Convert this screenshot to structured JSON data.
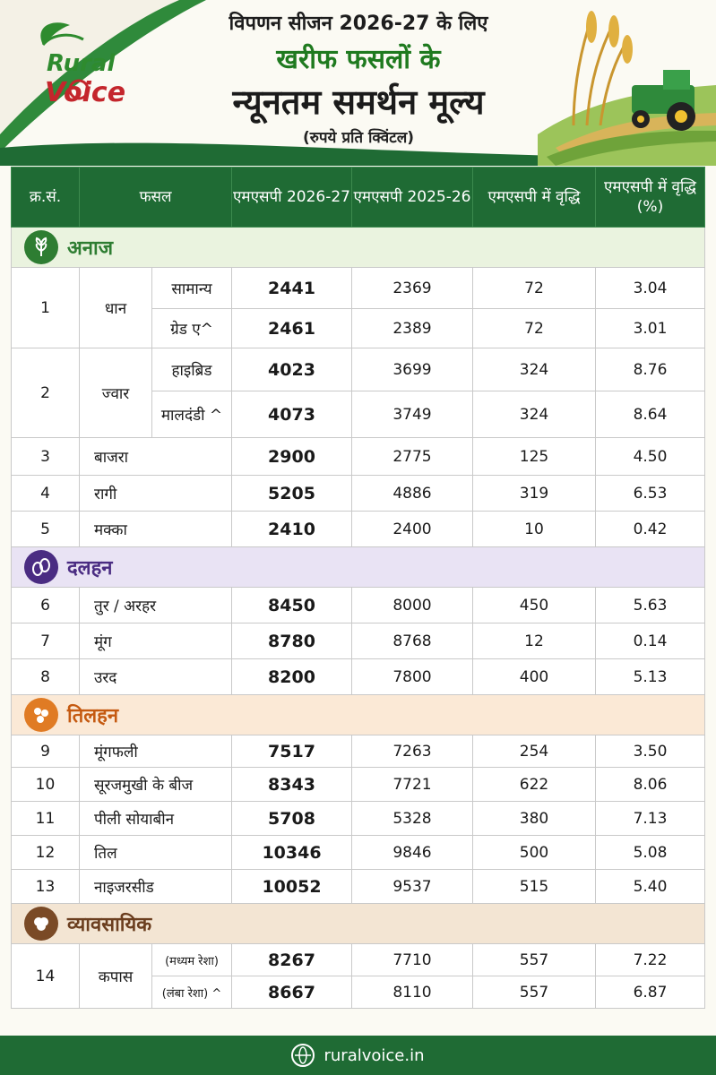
{
  "header": {
    "logo_word1": "Rural",
    "logo_word2": "Voice",
    "title_line1": "विपणन सीजन 2026-27 के लिए",
    "title_line2": "खरीफ फसलों के",
    "title_line3": "न्यूनतम समर्थन मूल्य",
    "title_line4": "(रुपये प्रति क्विंटल)"
  },
  "columns": [
    "क्र.सं.",
    "फसल",
    "एमएसपी 2026-27",
    "एमएसपी 2025-26",
    "एमएसपी में वृद्धि",
    "एमएसपी में वृद्धि (%)"
  ],
  "sections": [
    {
      "label": "अनाज",
      "color": "#2e7d32",
      "bg": "#eaf3df",
      "icon": "grain-icon"
    },
    {
      "label": "दलहन",
      "color": "#4a2c82",
      "bg": "#e9e3f4",
      "icon": "pulses-icon"
    },
    {
      "label": "तिलहन",
      "color": "#c55a11",
      "bg": "#fbe9d6",
      "icon": "oilseed-icon"
    },
    {
      "label": "व्यावसायिक",
      "color": "#6b3e1f",
      "bg": "#f3e5d3",
      "icon": "cotton-icon"
    }
  ],
  "rows": {
    "r1": {
      "sn": "1",
      "crop": "धान",
      "sub1": "सामान्य",
      "v1": [
        "2441",
        "2369",
        "72",
        "3.04"
      ],
      "sub2": "ग्रेड ए^",
      "v2": [
        "2461",
        "2389",
        "72",
        "3.01"
      ]
    },
    "r2": {
      "sn": "2",
      "crop": "ज्वार",
      "sub1": "हाइब्रिड",
      "v1": [
        "4023",
        "3699",
        "324",
        "8.76"
      ],
      "sub2": "मालदंडी ^",
      "v2": [
        "4073",
        "3749",
        "324",
        "8.64"
      ]
    },
    "r3": {
      "sn": "3",
      "crop": "बाजरा",
      "v": [
        "2900",
        "2775",
        "125",
        "4.50"
      ]
    },
    "r4": {
      "sn": "4",
      "crop": "रागी",
      "v": [
        "5205",
        "4886",
        "319",
        "6.53"
      ]
    },
    "r5": {
      "sn": "5",
      "crop": "मक्का",
      "v": [
        "2410",
        "2400",
        "10",
        "0.42"
      ]
    },
    "r6": {
      "sn": "6",
      "crop": "तुर / अरहर",
      "v": [
        "8450",
        "8000",
        "450",
        "5.63"
      ]
    },
    "r7": {
      "sn": "7",
      "crop": "मूंग",
      "v": [
        "8780",
        "8768",
        "12",
        "0.14"
      ]
    },
    "r8": {
      "sn": "8",
      "crop": "उरद",
      "v": [
        "8200",
        "7800",
        "400",
        "5.13"
      ]
    },
    "r9": {
      "sn": "9",
      "crop": "मूंगफली",
      "v": [
        "7517",
        "7263",
        "254",
        "3.50"
      ]
    },
    "r10": {
      "sn": "10",
      "crop": "सूरजमुखी के बीज",
      "v": [
        "8343",
        "7721",
        "622",
        "8.06"
      ]
    },
    "r11": {
      "sn": "11",
      "crop": "पीली सोयाबीन",
      "v": [
        "5708",
        "5328",
        "380",
        "7.13"
      ]
    },
    "r12": {
      "sn": "12",
      "crop": "तिल",
      "v": [
        "10346",
        "9846",
        "500",
        "5.08"
      ]
    },
    "r13": {
      "sn": "13",
      "crop": "नाइजरसीड",
      "v": [
        "10052",
        "9537",
        "515",
        "5.40"
      ]
    },
    "r14": {
      "sn": "14",
      "crop": "कपास",
      "sub1": "(मध्यम रेशा)",
      "v1": [
        "8267",
        "7710",
        "557",
        "7.22"
      ],
      "sub2": "(लंबा रेशा) ^",
      "v2": [
        "8667",
        "8110",
        "557",
        "6.87"
      ]
    }
  },
  "footer": {
    "website": "ruralvoice.in"
  }
}
